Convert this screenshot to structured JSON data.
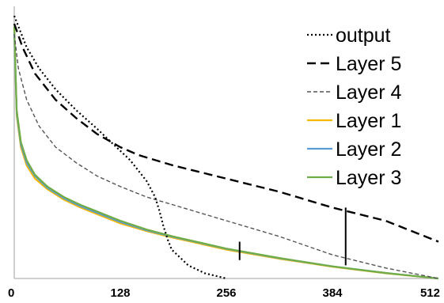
{
  "chart_data": {
    "type": "line",
    "xlim": [
      0,
      512
    ],
    "ylim": [
      0,
      1
    ],
    "x_ticks": [
      "0",
      "128",
      "256",
      "384",
      "512"
    ],
    "grid": false,
    "legend_position": "top-right",
    "series": [
      {
        "name": "output",
        "style": "dotted",
        "color": "#000000",
        "x": [
          0,
          5,
          15,
          30,
          50,
          75,
          100,
          120,
          140,
          150,
          160,
          170,
          175,
          180,
          185,
          190,
          200,
          210,
          230,
          256
        ],
        "y": [
          1.0,
          0.96,
          0.88,
          0.8,
          0.72,
          0.64,
          0.57,
          0.51,
          0.45,
          0.41,
          0.37,
          0.31,
          0.26,
          0.2,
          0.15,
          0.11,
          0.08,
          0.05,
          0.02,
          0.0
        ]
      },
      {
        "name": "Layer 5",
        "style": "dashed",
        "color": "#000000",
        "x": [
          0,
          10,
          25,
          50,
          75,
          100,
          128,
          150,
          192,
          256,
          320,
          384,
          448,
          512
        ],
        "y": [
          0.97,
          0.88,
          0.78,
          0.68,
          0.61,
          0.55,
          0.5,
          0.47,
          0.43,
          0.38,
          0.33,
          0.27,
          0.22,
          0.14
        ]
      },
      {
        "name": "Layer 4",
        "style": "dashed-hollow",
        "color": "#555555",
        "x": [
          0,
          5,
          15,
          30,
          50,
          75,
          100,
          128,
          160,
          192,
          256,
          320,
          384,
          448,
          512
        ],
        "y": [
          0.93,
          0.8,
          0.68,
          0.58,
          0.5,
          0.44,
          0.39,
          0.35,
          0.31,
          0.28,
          0.22,
          0.16,
          0.09,
          0.04,
          0.0
        ]
      },
      {
        "name": "Layer 1",
        "style": "solid",
        "color": "#F5B800",
        "x": [
          0,
          3,
          8,
          15,
          25,
          40,
          60,
          80,
          100,
          128,
          160,
          192,
          256,
          320,
          384,
          448,
          512
        ],
        "y": [
          0.95,
          0.62,
          0.5,
          0.43,
          0.38,
          0.34,
          0.3,
          0.27,
          0.245,
          0.21,
          0.18,
          0.155,
          0.11,
          0.075,
          0.045,
          0.02,
          0.0
        ]
      },
      {
        "name": "Layer 2",
        "style": "solid",
        "color": "#5B9BD5",
        "x": [
          0,
          3,
          8,
          15,
          25,
          40,
          60,
          80,
          100,
          128,
          160,
          192,
          256,
          320,
          384,
          448,
          512
        ],
        "y": [
          0.94,
          0.63,
          0.51,
          0.44,
          0.39,
          0.345,
          0.305,
          0.275,
          0.25,
          0.215,
          0.183,
          0.158,
          0.113,
          0.077,
          0.046,
          0.021,
          0.0
        ]
      },
      {
        "name": "Layer 3",
        "style": "solid",
        "color": "#70AD47",
        "x": [
          0,
          3,
          8,
          15,
          25,
          40,
          60,
          80,
          100,
          128,
          160,
          192,
          256,
          320,
          384,
          448,
          512
        ],
        "y": [
          0.96,
          0.64,
          0.52,
          0.45,
          0.395,
          0.35,
          0.31,
          0.28,
          0.255,
          0.22,
          0.186,
          0.16,
          0.114,
          0.078,
          0.046,
          0.021,
          0.0
        ]
      }
    ],
    "markers": [
      {
        "x": 272,
        "y_from": 0.07,
        "y_to": 0.14
      },
      {
        "x": 400,
        "y_from": 0.05,
        "y_to": 0.27
      }
    ]
  }
}
